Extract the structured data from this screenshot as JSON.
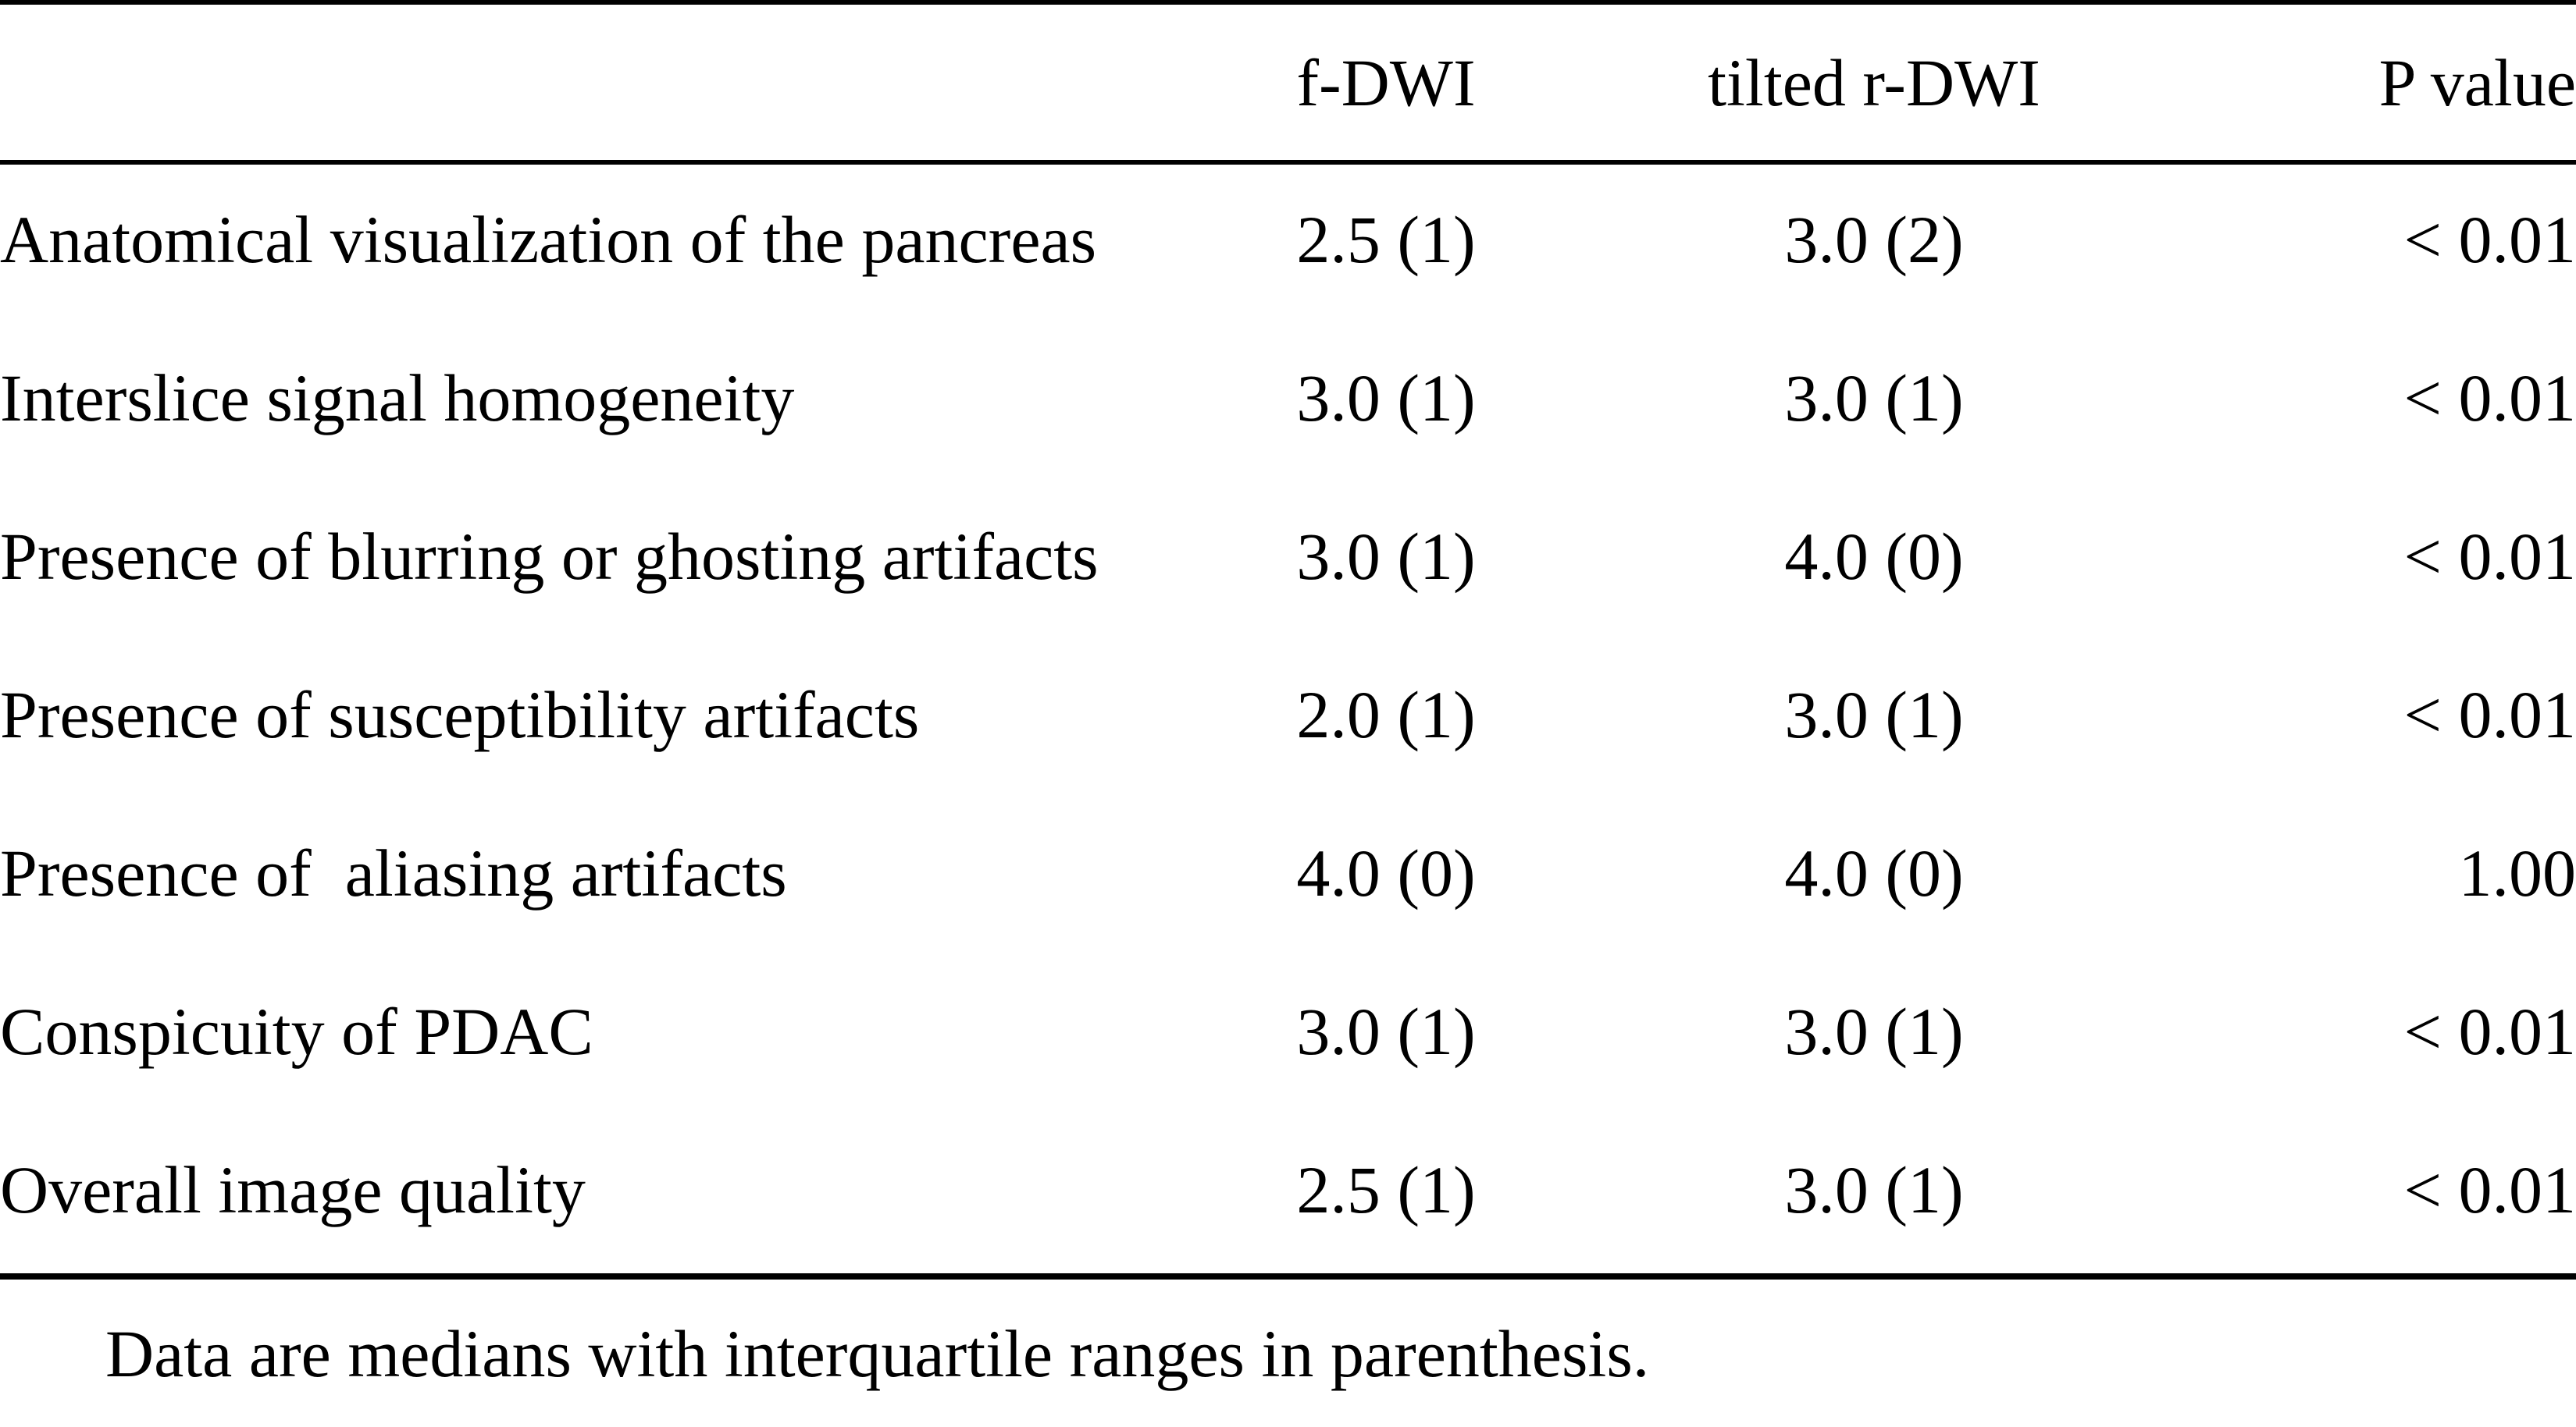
{
  "colors": {
    "background": "#ffffff",
    "text": "#000000",
    "rule": "#000000"
  },
  "table": {
    "columns": {
      "label": "",
      "f_dwi": "f-DWI",
      "tilted_r_dwi": "tilted r-DWI",
      "p_value": "P value"
    },
    "rows": [
      {
        "label": "Anatomical visualization of the pancreas",
        "f_dwi": "2.5 (1)",
        "tilted_r_dwi": "3.0 (2)",
        "p_value": "< 0.01"
      },
      {
        "label": "Interslice signal homogeneity",
        "f_dwi": "3.0 (1)",
        "tilted_r_dwi": "3.0 (1)",
        "p_value": "< 0.01"
      },
      {
        "label": "Presence of blurring or ghosting artifacts",
        "f_dwi": "3.0 (1)",
        "tilted_r_dwi": "4.0 (0)",
        "p_value": "< 0.01"
      },
      {
        "label": "Presence of susceptibility artifacts",
        "f_dwi": "2.0 (1)",
        "tilted_r_dwi": "3.0 (1)",
        "p_value": "< 0.01"
      },
      {
        "label": "Presence of  aliasing artifacts",
        "f_dwi": "4.0 (0)",
        "tilted_r_dwi": "4.0 (0)",
        "p_value": "1.00"
      },
      {
        "label": "Conspicuity of PDAC",
        "f_dwi": "3.0 (1)",
        "tilted_r_dwi": "3.0 (1)",
        "p_value": "< 0.01"
      },
      {
        "label": "Overall image quality",
        "f_dwi": "2.5 (1)",
        "tilted_r_dwi": "3.0 (1)",
        "p_value": "< 0.01"
      }
    ],
    "footnote": "Data are medians with interquartile ranges in parenthesis."
  }
}
